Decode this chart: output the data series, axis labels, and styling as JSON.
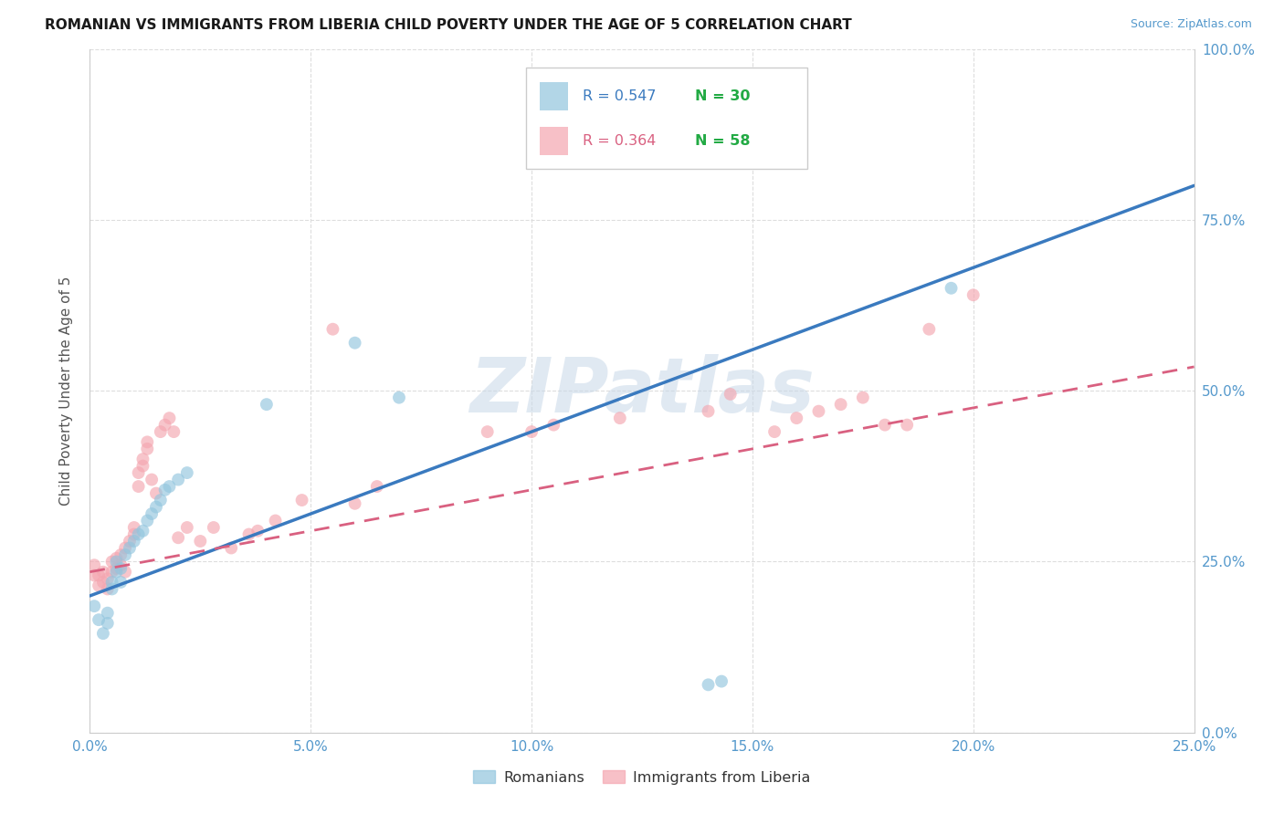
{
  "title": "ROMANIAN VS IMMIGRANTS FROM LIBERIA CHILD POVERTY UNDER THE AGE OF 5 CORRELATION CHART",
  "source": "Source: ZipAtlas.com",
  "ylabel": "Child Poverty Under the Age of 5",
  "xlim": [
    0.0,
    0.25
  ],
  "ylim": [
    0.0,
    1.0
  ],
  "x_ticks": [
    0.0,
    0.05,
    0.1,
    0.15,
    0.2,
    0.25
  ],
  "x_tick_labels": [
    "0.0%",
    "5.0%",
    "10.0%",
    "15.0%",
    "20.0%",
    "25.0%"
  ],
  "y_ticks": [
    0.0,
    0.25,
    0.5,
    0.75,
    1.0
  ],
  "y_tick_labels": [
    "0.0%",
    "25.0%",
    "50.0%",
    "75.0%",
    "100.0%"
  ],
  "legend1_r": "0.547",
  "legend1_n": "30",
  "legend2_r": "0.364",
  "legend2_n": "58",
  "legend1_label": "Romanians",
  "legend2_label": "Immigrants from Liberia",
  "blue_color": "#92c5de",
  "pink_color": "#f4a6b0",
  "blue_line_color": "#3a7abf",
  "pink_line_color": "#d96080",
  "watermark": "ZIPatlas",
  "blue_scatter_x": [
    0.001,
    0.002,
    0.003,
    0.004,
    0.004,
    0.005,
    0.005,
    0.006,
    0.006,
    0.007,
    0.007,
    0.008,
    0.009,
    0.01,
    0.011,
    0.012,
    0.013,
    0.014,
    0.015,
    0.016,
    0.017,
    0.018,
    0.02,
    0.022,
    0.04,
    0.06,
    0.07,
    0.14,
    0.143,
    0.195
  ],
  "blue_scatter_y": [
    0.185,
    0.165,
    0.145,
    0.16,
    0.175,
    0.21,
    0.22,
    0.235,
    0.25,
    0.22,
    0.24,
    0.26,
    0.27,
    0.28,
    0.29,
    0.295,
    0.31,
    0.32,
    0.33,
    0.34,
    0.355,
    0.36,
    0.37,
    0.38,
    0.48,
    0.57,
    0.49,
    0.07,
    0.075,
    0.65
  ],
  "pink_scatter_x": [
    0.001,
    0.001,
    0.002,
    0.002,
    0.003,
    0.003,
    0.004,
    0.004,
    0.005,
    0.005,
    0.006,
    0.006,
    0.007,
    0.007,
    0.008,
    0.008,
    0.009,
    0.01,
    0.01,
    0.011,
    0.011,
    0.012,
    0.012,
    0.013,
    0.013,
    0.014,
    0.015,
    0.016,
    0.017,
    0.018,
    0.019,
    0.02,
    0.022,
    0.025,
    0.028,
    0.032,
    0.036,
    0.038,
    0.042,
    0.048,
    0.055,
    0.06,
    0.065,
    0.09,
    0.1,
    0.105,
    0.12,
    0.14,
    0.145,
    0.155,
    0.16,
    0.165,
    0.17,
    0.175,
    0.18,
    0.185,
    0.19,
    0.2
  ],
  "pink_scatter_y": [
    0.23,
    0.245,
    0.215,
    0.23,
    0.22,
    0.235,
    0.21,
    0.225,
    0.235,
    0.25,
    0.24,
    0.255,
    0.245,
    0.26,
    0.235,
    0.27,
    0.28,
    0.29,
    0.3,
    0.36,
    0.38,
    0.39,
    0.4,
    0.415,
    0.425,
    0.37,
    0.35,
    0.44,
    0.45,
    0.46,
    0.44,
    0.285,
    0.3,
    0.28,
    0.3,
    0.27,
    0.29,
    0.295,
    0.31,
    0.34,
    0.59,
    0.335,
    0.36,
    0.44,
    0.44,
    0.45,
    0.46,
    0.47,
    0.495,
    0.44,
    0.46,
    0.47,
    0.48,
    0.49,
    0.45,
    0.45,
    0.59,
    0.64
  ],
  "blue_fit_x0": 0.0,
  "blue_fit_x1": 0.25,
  "blue_fit_y0": 0.2,
  "blue_fit_y1": 0.8,
  "pink_fit_x0": 0.0,
  "pink_fit_x1": 0.25,
  "pink_fit_y0": 0.235,
  "pink_fit_y1": 0.535,
  "tick_color": "#5599cc",
  "title_color": "#1a1a1a",
  "source_color": "#5599cc",
  "ylabel_color": "#555555",
  "grid_color": "#dddddd",
  "spine_color": "#cccccc",
  "legend_r1_color": "#3a7abf",
  "legend_n1_color": "#22aa44",
  "legend_r2_color": "#d96080",
  "legend_n2_color": "#22aa44",
  "watermark_color": "#c8d8e8"
}
